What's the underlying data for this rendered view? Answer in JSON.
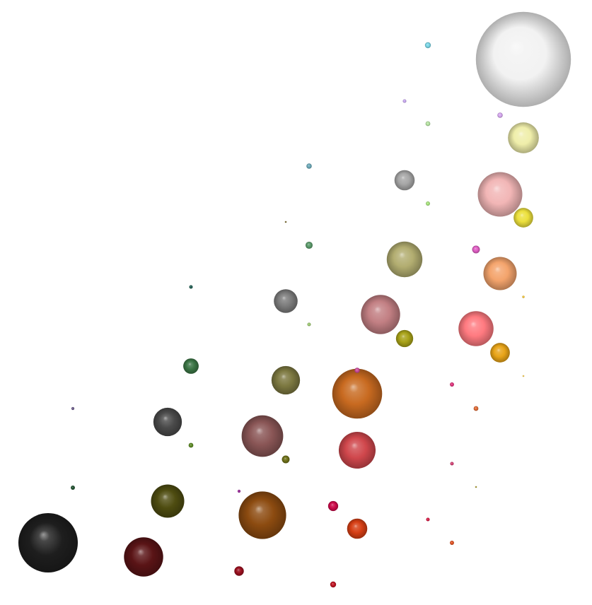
{
  "scene": {
    "background": "#ffffff",
    "highlight": "#ffffff",
    "shadow": "#000000"
  },
  "spheres": [
    {
      "color": "#1e1e1e",
      "value": 1.0
    },
    {
      "color": "#5a1416",
      "value": 0.66
    },
    {
      "color": "#4e4c10",
      "value": 0.56
    },
    {
      "color": "#4a4a4a",
      "value": 0.48
    },
    {
      "color": "#3a7444",
      "value": 0.26
    },
    {
      "color": "#1e5c50",
      "value": 0.06
    },
    {
      "color": "#1e4f2e",
      "value": 0.07
    },
    {
      "color": "#8c4b10",
      "value": 0.8
    },
    {
      "color": "#8a5656",
      "value": 0.7
    },
    {
      "color": "#7c7840",
      "value": 0.48
    },
    {
      "color": "#7c7c7c",
      "value": 0.4
    },
    {
      "color": "#c86a20",
      "value": 0.84
    },
    {
      "color": "#d0474c",
      "value": 0.62
    },
    {
      "color": "#c27f83",
      "value": 0.66
    },
    {
      "color": "#b2ad70",
      "value": 0.6
    },
    {
      "color": "#a6a6a6",
      "value": 0.34
    },
    {
      "color": "#ff7a80",
      "value": 0.59
    },
    {
      "color": "#f4a46c",
      "value": 0.56
    },
    {
      "color": "#f2b6b6",
      "value": 0.75
    },
    {
      "color": "#efeeaa",
      "value": 0.52
    },
    {
      "color": "#f2f2f2",
      "value": 1.6
    },
    {
      "color": "#e8a418",
      "value": 0.33
    },
    {
      "color": "#ece03c",
      "value": 0.33
    },
    {
      "color": "#a8a218",
      "value": 0.29
    },
    {
      "color": "#cc0a4a",
      "value": 0.17
    },
    {
      "color": "#d63e14",
      "value": 0.34
    },
    {
      "color": "#9a0f1e",
      "value": 0.16
    },
    {
      "color": "#c01422",
      "value": 0.1
    },
    {
      "color": "#6e7018",
      "value": 0.13
    },
    {
      "color": "#5c8a24",
      "value": 0.08
    },
    {
      "color": "#5a9a6a",
      "value": 0.12
    },
    {
      "color": "#6aa8b8",
      "value": 0.09
    },
    {
      "color": "#7ad6e6",
      "value": 0.1
    },
    {
      "color": "#b6e4a2",
      "value": 0.08
    },
    {
      "color": "#a6e47a",
      "value": 0.07
    },
    {
      "color": "#9cc870",
      "value": 0.06
    },
    {
      "color": "#c6a6f0",
      "value": 0.06
    },
    {
      "color": "#d6a6f0",
      "value": 0.09
    },
    {
      "color": "#e05ec4",
      "value": 0.13
    },
    {
      "color": "#cc4a9a",
      "value": 0.09
    },
    {
      "color": "#e0307a",
      "value": 0.07
    },
    {
      "color": "#d23e72",
      "value": 0.06
    },
    {
      "color": "#e06a34",
      "value": 0.08
    },
    {
      "color": "#e05020",
      "value": 0.07
    },
    {
      "color": "#d61a44",
      "value": 0.06
    },
    {
      "color": "#9a2a9a",
      "value": 0.05
    },
    {
      "color": "#f0c030",
      "value": 0.04
    },
    {
      "color": "#f0c850",
      "value": 0.03
    },
    {
      "color": "#a89a30",
      "value": 0.03
    },
    {
      "color": "#7a6a30",
      "value": 0.03
    },
    {
      "color": "#6a5a8a",
      "value": 0.05
    }
  ]
}
